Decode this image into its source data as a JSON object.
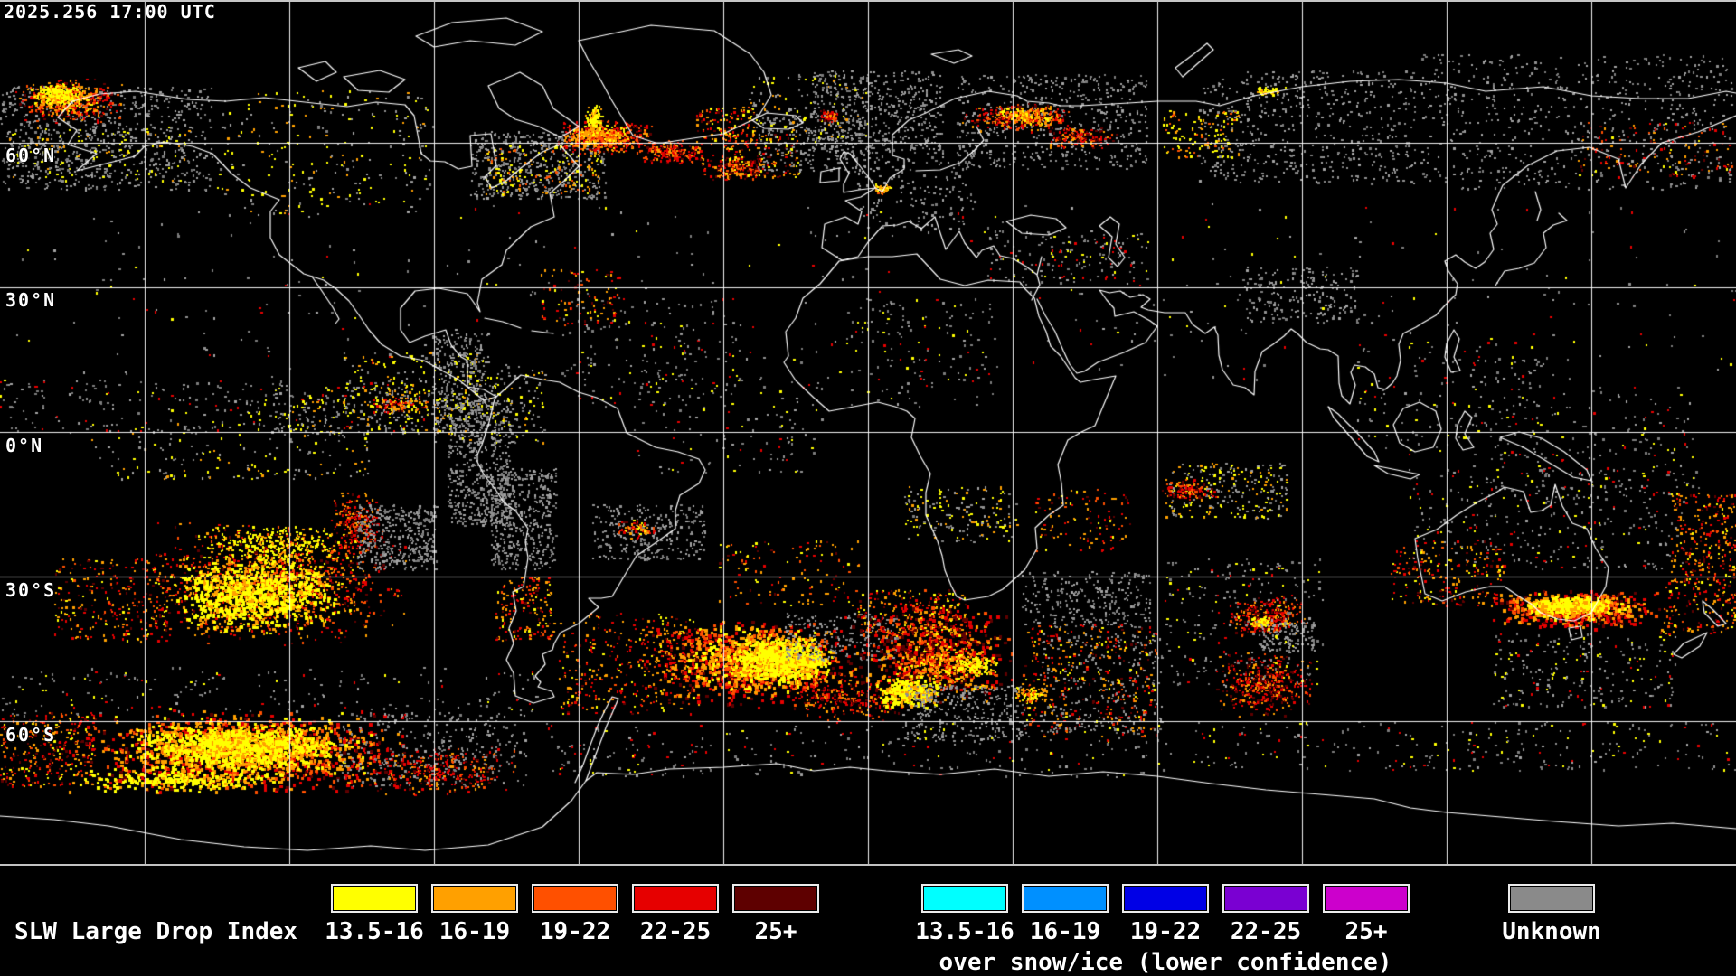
{
  "timestamp": "2025.256 17:00 UTC",
  "map": {
    "latitude_labels": [
      "60°N",
      "30°N",
      "0°N",
      "30°S",
      "60°S"
    ],
    "graticule_color": "#ffffff",
    "coastline_color": "#ffffff",
    "background_color": "#000000",
    "unknown_speckle_color": "#8f8f8f"
  },
  "legend": {
    "title": "SLW Large Drop Index",
    "standard": {
      "bins": [
        {
          "label": "13.5-16",
          "color": "#ffff00"
        },
        {
          "label": "16-19",
          "color": "#ffa000"
        },
        {
          "label": "19-22",
          "color": "#ff5000"
        },
        {
          "label": "22-25",
          "color": "#e60000"
        },
        {
          "label": "25+",
          "color": "#5e0000"
        }
      ]
    },
    "snow_ice": {
      "caption": "over snow/ice (lower confidence)",
      "bins": [
        {
          "label": "13.5-16",
          "color": "#00ffff"
        },
        {
          "label": "16-19",
          "color": "#0090ff"
        },
        {
          "label": "19-22",
          "color": "#0000e6"
        },
        {
          "label": "22-25",
          "color": "#7a00d2"
        },
        {
          "label": "25+",
          "color": "#cc00cc"
        }
      ]
    },
    "unknown": {
      "label": "Unknown",
      "color": "#8a8a8a"
    }
  }
}
